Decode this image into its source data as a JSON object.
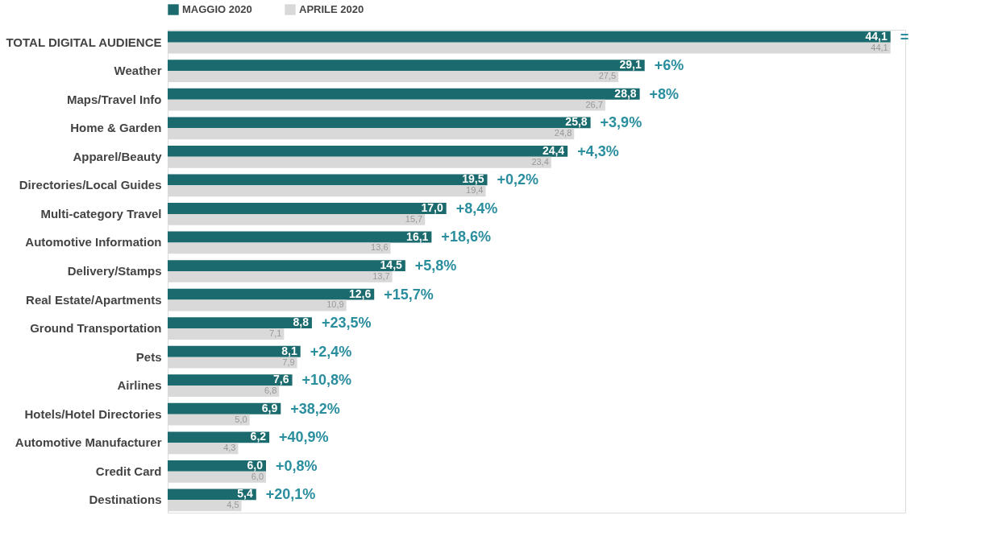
{
  "chart_data": {
    "type": "bar",
    "orientation": "horizontal",
    "legend": "top",
    "tick_labels": "y",
    "xlim": [
      0,
      45
    ],
    "categories": [
      "TOTAL DIGITAL AUDIENCE",
      "Weather",
      "Maps/Travel Info",
      "Home & Garden",
      "Apparel/Beauty",
      "Directories/Local Guides",
      "Multi-category Travel",
      "Automotive Information",
      "Delivery/Stamps",
      "Real Estate/Apartments",
      "Ground Transportation",
      "Pets",
      "Airlines",
      "Hotels/Hotel Directories",
      "Automotive Manufacturer",
      "Credit Card",
      "Destinations"
    ],
    "series": [
      {
        "name": "MAGGIO 2020",
        "color": "#1b6b6e",
        "values": [
          44.1,
          29.1,
          28.8,
          25.8,
          24.4,
          19.5,
          17.0,
          16.1,
          14.5,
          12.6,
          8.8,
          8.1,
          7.6,
          6.9,
          6.2,
          6.0,
          5.4
        ],
        "value_labels": [
          "44,1",
          "29,1",
          "28,8",
          "25,8",
          "24,4",
          "19,5",
          "17,0",
          "16,1",
          "14,5",
          "12,6",
          "8,8",
          "8,1",
          "7,6",
          "6,9",
          "6,2",
          "6,0",
          "5,4"
        ]
      },
      {
        "name": "APRILE 2020",
        "color": "#d9d9d9",
        "values": [
          44.1,
          27.5,
          26.7,
          24.8,
          23.4,
          19.4,
          15.7,
          13.6,
          13.7,
          10.9,
          7.1,
          7.9,
          6.8,
          5.0,
          4.3,
          6.0,
          4.5
        ],
        "value_labels": [
          "44,1",
          "27,5",
          "26,7",
          "24,8",
          "23,4",
          "19,4",
          "15,7",
          "13,6",
          "13,7",
          "10,9",
          "7,1",
          "7,9",
          "6,8",
          "5,0",
          "4,3",
          "6,0",
          "4,5"
        ]
      }
    ],
    "annotations": [
      {
        "text": "=",
        "x": 44.1,
        "y": "TOTAL DIGITAL AUDIENCE"
      },
      {
        "text": "+6%",
        "x": 29.1,
        "y": "Weather"
      },
      {
        "text": "+8%",
        "x": 28.8,
        "y": "Maps/Travel Info"
      },
      {
        "text": "+3,9%",
        "x": 25.8,
        "y": "Home & Garden"
      },
      {
        "text": "+4,3%",
        "x": 24.4,
        "y": "Apparel/Beauty"
      },
      {
        "text": "+0,2%",
        "x": 19.5,
        "y": "Directories/Local Guides"
      },
      {
        "text": "+8,4%",
        "x": 17.0,
        "y": "Multi-category Travel"
      },
      {
        "text": "+18,6%",
        "x": 16.1,
        "y": "Automotive Information"
      },
      {
        "text": "+5,8%",
        "x": 14.5,
        "y": "Delivery/Stamps"
      },
      {
        "text": "+15,7%",
        "x": 12.6,
        "y": "Real Estate/Apartments"
      },
      {
        "text": "+23,5%",
        "x": 8.8,
        "y": "Ground Transportation"
      },
      {
        "text": "+2,4%",
        "x": 8.1,
        "y": "Pets"
      },
      {
        "text": "+10,8%",
        "x": 7.6,
        "y": "Airlines"
      },
      {
        "text": "+38,2%",
        "x": 6.9,
        "y": "Hotels/Hotel Directories"
      },
      {
        "text": "+40,9%",
        "x": 6.2,
        "y": "Automotive Manufacturer"
      },
      {
        "text": "+0,8%",
        "x": 6.0,
        "y": "Credit Card"
      },
      {
        "text": "+20,1%",
        "x": 5.4,
        "y": "Destinations"
      }
    ]
  }
}
